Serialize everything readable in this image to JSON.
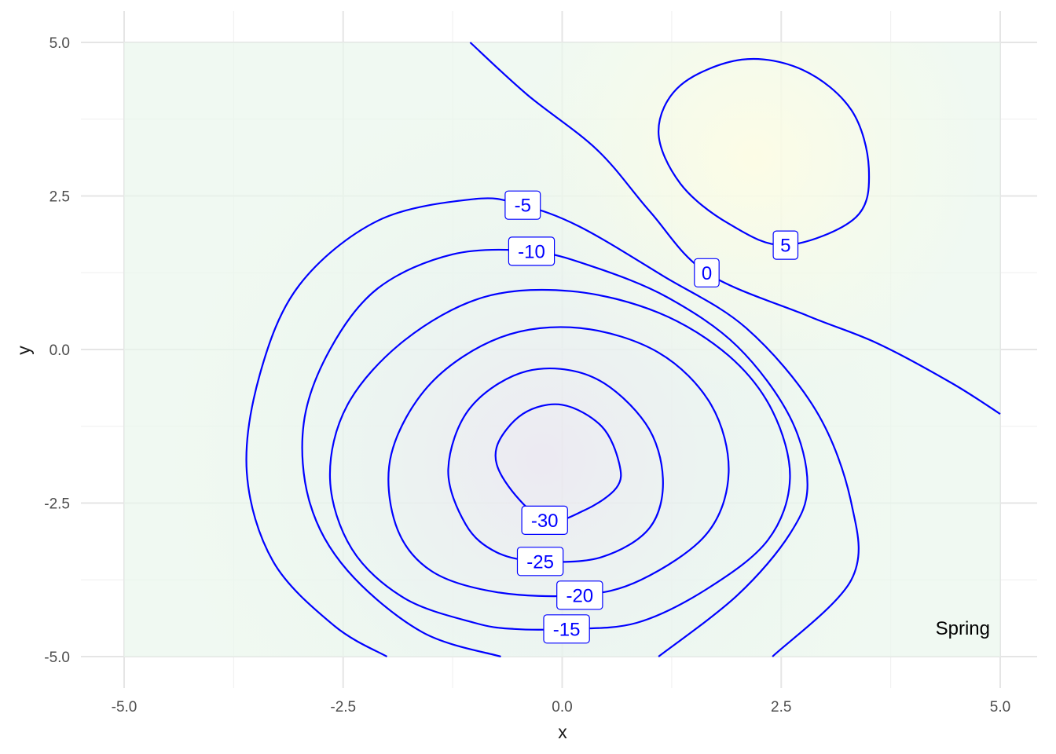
{
  "chart_data": {
    "type": "contour",
    "xlabel": "x",
    "ylabel": "y",
    "xlim": [
      -5,
      5
    ],
    "ylim": [
      -5,
      5
    ],
    "x_ticks": [
      -5,
      -2.5,
      0,
      2.5,
      5
    ],
    "y_ticks": [
      -5,
      -2.5,
      0,
      2.5,
      5
    ],
    "x_tick_labels": [
      "-5.0",
      "-2.5",
      "0.0",
      "2.5",
      "5.0"
    ],
    "y_tick_labels": [
      "-5.0",
      "-2.5",
      "0.0",
      "2.5",
      "5.0"
    ],
    "grid": true,
    "annotation": "Spring",
    "line_color": "#0000ff",
    "fill_colors": {
      "low": "#ece6f2",
      "mid": "#eaf6ec",
      "high": "#fefde6"
    },
    "contours": [
      {
        "level": "-30",
        "label_at": [
          -0.2,
          -2.78
        ],
        "points": [
          [
            -0.2,
            -2.78
          ],
          [
            0.25,
            -2.62
          ],
          [
            0.62,
            -2.25
          ],
          [
            0.65,
            -1.85
          ],
          [
            0.45,
            -1.25
          ],
          [
            0.0,
            -0.9
          ],
          [
            -0.45,
            -1.05
          ],
          [
            -0.75,
            -1.6
          ],
          [
            -0.65,
            -2.15
          ]
        ]
      },
      {
        "level": "-25",
        "label_at": [
          -0.25,
          -3.45
        ],
        "points": [
          [
            -0.25,
            -3.45
          ],
          [
            0.45,
            -3.38
          ],
          [
            1.0,
            -2.9
          ],
          [
            1.15,
            -2.1
          ],
          [
            0.95,
            -1.2
          ],
          [
            0.35,
            -0.45
          ],
          [
            -0.4,
            -0.35
          ],
          [
            -1.05,
            -0.95
          ],
          [
            -1.3,
            -1.95
          ],
          [
            -1.1,
            -2.85
          ],
          [
            -0.75,
            -3.3
          ]
        ]
      },
      {
        "level": "-20",
        "label_at": [
          0.2,
          -4.0
        ],
        "points": [
          [
            0.2,
            -4.0
          ],
          [
            0.9,
            -3.75
          ],
          [
            1.65,
            -3.0
          ],
          [
            1.9,
            -2.0
          ],
          [
            1.7,
            -0.9
          ],
          [
            1.1,
            -0.05
          ],
          [
            0.2,
            0.35
          ],
          [
            -0.7,
            0.2
          ],
          [
            -1.5,
            -0.55
          ],
          [
            -1.95,
            -1.7
          ],
          [
            -1.9,
            -2.85
          ],
          [
            -1.5,
            -3.6
          ],
          [
            -0.75,
            -3.95
          ]
        ]
      },
      {
        "level": "-15",
        "label_at": [
          0.05,
          -4.55
        ],
        "points": [
          [
            0.05,
            -4.55
          ],
          [
            0.85,
            -4.45
          ],
          [
            1.65,
            -3.9
          ],
          [
            2.35,
            -3.1
          ],
          [
            2.6,
            -2.1
          ],
          [
            2.4,
            -1.0
          ],
          [
            1.9,
            -0.1
          ],
          [
            1.1,
            0.6
          ],
          [
            0.1,
            0.95
          ],
          [
            -0.9,
            0.85
          ],
          [
            -1.8,
            0.15
          ],
          [
            -2.45,
            -0.9
          ],
          [
            -2.65,
            -2.1
          ],
          [
            -2.4,
            -3.25
          ],
          [
            -1.8,
            -4.05
          ],
          [
            -1.0,
            -4.45
          ],
          [
            -0.55,
            -4.55
          ]
        ]
      },
      {
        "level": "-10",
        "open": true,
        "label_at": [
          -0.35,
          1.6
        ],
        "points": [
          [
            1.1,
            -5.0
          ],
          [
            2.0,
            -4.0
          ],
          [
            2.6,
            -3.0
          ],
          [
            2.8,
            -2.2
          ],
          [
            2.6,
            -1.1
          ],
          [
            2.0,
            0.05
          ],
          [
            1.2,
            0.85
          ],
          [
            0.35,
            1.35
          ],
          [
            -0.35,
            1.6
          ],
          [
            -1.25,
            1.55
          ],
          [
            -2.1,
            1.0
          ],
          [
            -2.65,
            0.0
          ],
          [
            -2.95,
            -1.2
          ],
          [
            -2.88,
            -2.5
          ],
          [
            -2.45,
            -3.6
          ],
          [
            -1.6,
            -4.6
          ],
          [
            -0.7,
            -5.0
          ]
        ]
      },
      {
        "level": "-5",
        "open": true,
        "label_at": [
          -0.45,
          2.35
        ],
        "points": [
          [
            2.4,
            -5.0
          ],
          [
            3.3,
            -3.75
          ],
          [
            3.3,
            -2.5
          ],
          [
            2.9,
            -1.0
          ],
          [
            2.1,
            0.35
          ],
          [
            1.15,
            1.2
          ],
          [
            0.2,
            2.0
          ],
          [
            -0.45,
            2.35
          ],
          [
            -1.0,
            2.45
          ],
          [
            -2.1,
            2.1
          ],
          [
            -3.0,
            1.05
          ],
          [
            -3.45,
            -0.4
          ],
          [
            -3.6,
            -2.0
          ],
          [
            -3.3,
            -3.45
          ],
          [
            -2.6,
            -4.5
          ],
          [
            -2.0,
            -5.0
          ]
        ]
      },
      {
        "level": "0",
        "open": true,
        "label_at": [
          1.65,
          1.25
        ],
        "points": [
          [
            -1.05,
            5.0
          ],
          [
            -0.4,
            4.15
          ],
          [
            0.4,
            3.25
          ],
          [
            1.0,
            2.25
          ],
          [
            1.65,
            1.25
          ],
          [
            2.8,
            0.55
          ],
          [
            3.6,
            0.1
          ],
          [
            4.45,
            -0.55
          ],
          [
            5.0,
            -1.05
          ]
        ]
      },
      {
        "level": "5",
        "label_at": [
          2.55,
          1.7
        ],
        "points": [
          [
            2.55,
            1.7
          ],
          [
            3.35,
            2.15
          ],
          [
            3.5,
            2.95
          ],
          [
            3.3,
            3.9
          ],
          [
            2.75,
            4.55
          ],
          [
            2.05,
            4.72
          ],
          [
            1.35,
            4.3
          ],
          [
            1.1,
            3.55
          ],
          [
            1.35,
            2.7
          ],
          [
            1.9,
            2.05
          ]
        ]
      }
    ]
  }
}
